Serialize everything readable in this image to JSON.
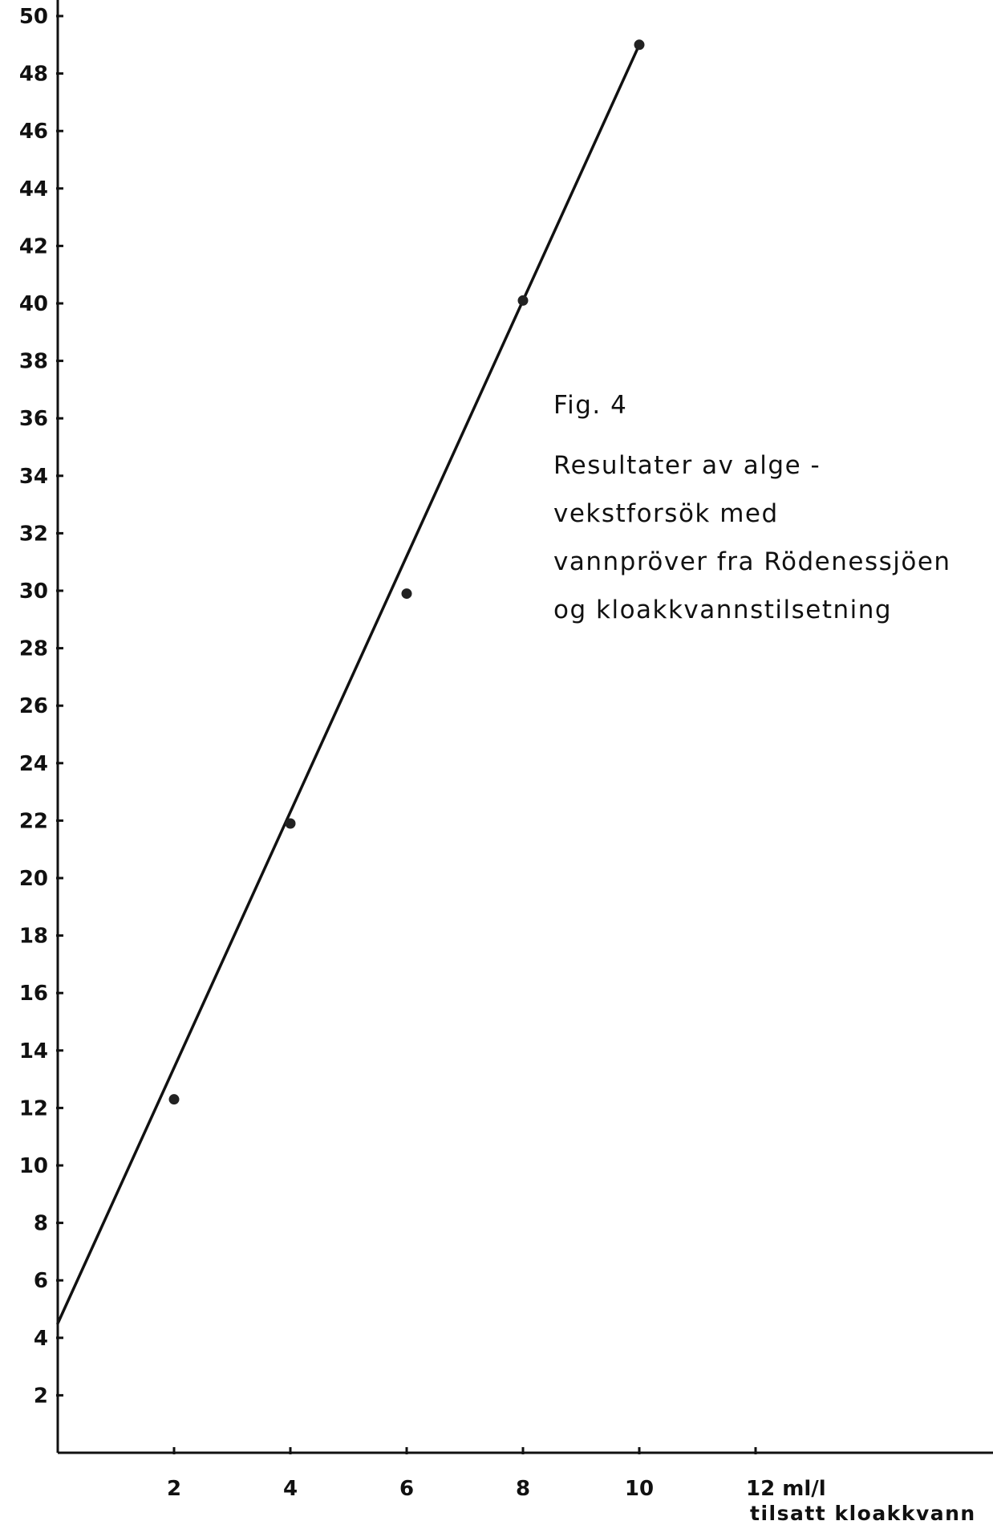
{
  "chart_data": {
    "type": "scatter",
    "title": "",
    "x_tick_labels": [
      "2",
      "4",
      "6",
      "8",
      "10",
      "12 ml/l"
    ],
    "x_ticks": [
      2,
      4,
      6,
      8,
      10,
      12
    ],
    "xlabel": "tilsatt kloakkvann",
    "y_ticks": [
      2,
      4,
      6,
      8,
      10,
      12,
      14,
      16,
      18,
      20,
      22,
      24,
      26,
      28,
      30,
      32,
      34,
      36,
      38,
      40,
      42,
      44,
      46,
      48,
      50
    ],
    "xlim": [
      0,
      16
    ],
    "ylim": [
      0,
      51
    ],
    "series": [
      {
        "points": [
          {
            "x": 2,
            "y": 12.3
          },
          {
            "x": 4,
            "y": 21.9
          },
          {
            "x": 6,
            "y": 29.9
          },
          {
            "x": 8,
            "y": 40.1
          },
          {
            "x": 10,
            "y": 49
          }
        ],
        "fit_line": {
          "from": {
            "x": 0,
            "y": 4.5
          },
          "to": {
            "x": 10,
            "y": 49
          }
        }
      }
    ],
    "annotations": [
      "Fig. 4",
      "Resultater av alge -",
      "vekstforsök  med",
      "vannpröver  fra  Rödenessjöen",
      "og  kloakkvannstilsetning"
    ],
    "grid": false
  }
}
